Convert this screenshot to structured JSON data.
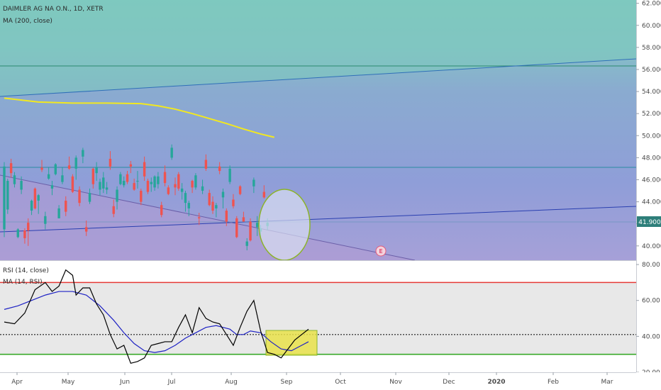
{
  "chart_data": [
    {
      "type": "candlestick",
      "title": "DAIMLER AG NA O.N., 1D, XETR",
      "indicator_label": "MA (200, close)",
      "y_ticks": [
        "62.000",
        "60.000",
        "58.000",
        "56.000",
        "54.000",
        "52.000",
        "50.000",
        "48.000",
        "46.000",
        "44.000",
        "42.000",
        "40.000"
      ],
      "ylim": [
        38.7,
        62.3
      ],
      "last_price": "41.900",
      "last_price_value": 41.9,
      "earnings_badge": "E",
      "colors": {
        "up": "#26a69a",
        "down": "#ef5350",
        "ma": "#f2e81f",
        "last_price_tag": "#2e7f7a"
      },
      "ma_200": [
        [
          0,
          53.4
        ],
        [
          10,
          53.05
        ],
        [
          20,
          52.95
        ],
        [
          30,
          52.95
        ],
        [
          40,
          52.9
        ],
        [
          45,
          52.7
        ],
        [
          50,
          52.4
        ],
        [
          55,
          52.0
        ],
        [
          60,
          51.55
        ],
        [
          65,
          51.1
        ],
        [
          70,
          50.6
        ],
        [
          75,
          50.15
        ],
        [
          79,
          49.85
        ]
      ],
      "candles": [
        [
          41.5,
          47.6,
          40.8,
          47.2
        ],
        [
          43.3,
          46.1,
          42.9,
          45.9
        ],
        [
          47.5,
          47.9,
          46.2,
          46.6
        ],
        [
          45.6,
          46.7,
          45.3,
          46.4
        ],
        [
          40.8,
          41.6,
          40.7,
          41.5
        ],
        [
          45.1,
          46.3,
          44.7,
          45.9
        ],
        [
          41.4,
          41.6,
          40.2,
          40.7
        ],
        [
          42.1,
          42.5,
          40.0,
          41.4
        ],
        [
          43.2,
          44.2,
          42.8,
          44.1
        ],
        [
          45.2,
          45.3,
          43.3,
          43.4
        ],
        [
          44.1,
          44.7,
          42.9,
          44.6
        ],
        [
          47.1,
          47.8,
          46.7,
          46.9
        ],
        [
          42.0,
          43.1,
          41.5,
          42.7
        ],
        [
          46.1,
          47.1,
          46.0,
          46.5
        ],
        [
          45.2,
          45.9,
          44.6,
          45.5
        ],
        [
          46.5,
          47.5,
          46.4,
          47.4
        ],
        [
          42.5,
          43.7,
          42.5,
          43.4
        ],
        [
          45.8,
          47.1,
          45.6,
          46.4
        ],
        [
          44.1,
          44.5,
          42.7,
          43.1
        ],
        [
          47.3,
          48.1,
          46.9,
          47.0
        ],
        [
          46.3,
          46.5,
          44.8,
          44.9
        ],
        [
          47.0,
          48.2,
          46.0,
          48.0
        ],
        [
          45.1,
          45.4,
          43.6,
          43.9
        ],
        [
          48.1,
          48.9,
          47.5,
          48.7
        ],
        [
          41.7,
          42.3,
          40.9,
          41.3
        ],
        [
          44.0,
          45.2,
          43.8,
          44.8
        ],
        [
          47.0,
          47.1,
          45.2,
          45.6
        ],
        [
          46.6,
          47.6,
          45.9,
          47.1
        ],
        [
          45.1,
          46.1,
          44.6,
          45.8
        ],
        [
          45.2,
          46.7,
          44.8,
          46.2
        ],
        [
          45.1,
          45.8,
          44.7,
          45.3
        ],
        [
          47.9,
          48.6,
          46.9,
          47.2
        ],
        [
          43.6,
          44.2,
          42.6,
          42.9
        ],
        [
          44.0,
          45.4,
          43.3,
          45.1
        ],
        [
          45.6,
          46.7,
          45.5,
          46.5
        ],
        [
          45.5,
          46.3,
          45.3,
          45.9
        ],
        [
          46.5,
          46.8,
          45.6,
          45.8
        ],
        [
          47.4,
          47.7,
          46.6,
          47.2
        ],
        [
          45.7,
          46.1,
          45.0,
          45.1
        ],
        [
          45.9,
          46.8,
          45.2,
          45.9
        ],
        [
          45.0,
          45.2,
          43.7,
          44.0
        ],
        [
          47.6,
          48.1,
          45.9,
          46.3
        ],
        [
          45.9,
          46.1,
          44.7,
          44.9
        ],
        [
          45.6,
          46.2,
          44.9,
          45.8
        ],
        [
          45.3,
          46.4,
          45.0,
          46.3
        ],
        [
          45.6,
          46.7,
          45.2,
          46.3
        ],
        [
          43.7,
          44.0,
          42.6,
          42.8
        ],
        [
          46.7,
          47.3,
          45.4,
          45.7
        ],
        [
          45.3,
          45.5,
          44.6,
          44.7
        ],
        [
          48.0,
          49.2,
          47.8,
          48.9
        ],
        [
          45.6,
          46.2,
          44.6,
          45.3
        ],
        [
          46.5,
          46.7,
          45.0,
          45.2
        ],
        [
          44.9,
          45.7,
          44.2,
          45.2
        ],
        [
          43.9,
          45.0,
          43.1,
          44.8
        ],
        [
          43.4,
          44.1,
          42.7,
          43.9
        ],
        [
          45.9,
          46.0,
          44.8,
          45.3
        ],
        [
          45.3,
          46.6,
          45.1,
          46.4
        ],
        [
          42.6,
          43.0,
          41.9,
          42.5
        ],
        [
          45.0,
          46.0,
          44.7,
          45.4
        ],
        [
          47.8,
          48.3,
          46.8,
          47.0
        ],
        [
          44.8,
          45.1,
          43.6,
          43.7
        ],
        [
          44.0,
          44.5,
          42.9,
          43.2
        ],
        [
          43.4,
          43.9,
          42.6,
          43.7
        ],
        [
          47.2,
          47.6,
          46.5,
          46.8
        ],
        [
          44.4,
          45.2,
          43.4,
          44.9
        ],
        [
          43.2,
          43.4,
          41.8,
          42.2
        ],
        [
          45.8,
          47.3,
          45.6,
          47.0
        ],
        [
          44.2,
          44.7,
          43.4,
          43.6
        ],
        [
          42.5,
          42.7,
          40.7,
          40.8
        ],
        [
          45.4,
          45.5,
          44.6,
          44.7
        ],
        [
          42.6,
          43.1,
          42.2,
          42.2
        ],
        [
          40.0,
          40.7,
          39.6,
          40.4
        ],
        [
          42.2,
          42.5,
          40.4,
          40.5
        ],
        [
          45.4,
          46.2,
          44.8,
          46.0
        ],
        [
          41.7,
          42.7,
          40.9,
          42.1
        ],
        [
          41.3,
          41.9,
          40.7,
          41.6
        ],
        [
          44.9,
          45.5,
          44.3,
          44.4
        ],
        [
          41.8,
          42.5,
          41.4,
          42.1
        ]
      ]
    },
    {
      "type": "line",
      "title": "RSI (14, close)",
      "indicator_label": "MA (14, RSI)",
      "y_ticks": [
        "80.00",
        "60.00",
        "40.00",
        "20.00"
      ],
      "ylim": [
        20,
        82
      ],
      "levels": {
        "upper": 70,
        "middle": 41,
        "lower": 30
      },
      "series": [
        {
          "name": "RSI (14, close)",
          "color": "#000000",
          "points": [
            [
              0,
              48
            ],
            [
              3,
              47
            ],
            [
              6,
              53
            ],
            [
              9,
              66
            ],
            [
              12,
              70
            ],
            [
              14,
              65
            ],
            [
              16,
              68
            ],
            [
              18,
              77
            ],
            [
              20,
              74
            ],
            [
              21,
              63
            ],
            [
              23,
              67
            ],
            [
              25,
              67
            ],
            [
              27,
              58
            ],
            [
              29,
              52
            ],
            [
              31,
              41
            ],
            [
              33,
              33
            ],
            [
              35,
              35
            ],
            [
              37,
              25
            ],
            [
              39,
              26
            ],
            [
              41,
              28
            ],
            [
              43,
              35
            ],
            [
              45,
              36
            ],
            [
              47,
              37
            ],
            [
              49,
              37
            ],
            [
              51,
              45
            ],
            [
              53,
              52
            ],
            [
              55,
              42
            ],
            [
              57,
              56
            ],
            [
              59,
              50
            ],
            [
              61,
              48
            ],
            [
              63,
              47
            ],
            [
              65,
              41
            ],
            [
              67,
              35
            ],
            [
              69,
              45
            ],
            [
              71,
              54
            ],
            [
              73,
              60
            ],
            [
              75,
              43
            ],
            [
              77,
              31
            ],
            [
              79,
              30
            ],
            [
              81,
              28
            ],
            [
              83,
              33
            ],
            [
              85,
              38
            ],
            [
              87,
              41
            ],
            [
              89,
              44
            ]
          ]
        },
        {
          "name": "MA (14, RSI)",
          "color": "#1e22c4",
          "points": [
            [
              0,
              55
            ],
            [
              4,
              57
            ],
            [
              8,
              60
            ],
            [
              12,
              63
            ],
            [
              16,
              65
            ],
            [
              20,
              65
            ],
            [
              24,
              63
            ],
            [
              28,
              57
            ],
            [
              32,
              49
            ],
            [
              35,
              42
            ],
            [
              38,
              36
            ],
            [
              41,
              32
            ],
            [
              44,
              31
            ],
            [
              47,
              32
            ],
            [
              50,
              35
            ],
            [
              53,
              39
            ],
            [
              56,
              42
            ],
            [
              59,
              45
            ],
            [
              62,
              46
            ],
            [
              64,
              45
            ],
            [
              66,
              44
            ],
            [
              68,
              41
            ],
            [
              70,
              41
            ],
            [
              72,
              43
            ],
            [
              75,
              42
            ],
            [
              78,
              37
            ],
            [
              81,
              33
            ],
            [
              84,
              32
            ],
            [
              87,
              35
            ],
            [
              89,
              37
            ]
          ]
        }
      ]
    }
  ],
  "x_axis": {
    "labels": [
      {
        "text": "Apr",
        "bold": false
      },
      {
        "text": "May",
        "bold": false
      },
      {
        "text": "Jun",
        "bold": false
      },
      {
        "text": "Jul",
        "bold": false
      },
      {
        "text": "Aug",
        "bold": false
      },
      {
        "text": "Sep",
        "bold": false
      },
      {
        "text": "Oct",
        "bold": false
      },
      {
        "text": "Nov",
        "bold": false
      },
      {
        "text": "Dec",
        "bold": false
      },
      {
        "text": "2020",
        "bold": true
      },
      {
        "text": "Feb",
        "bold": false
      },
      {
        "text": "Mar",
        "bold": false
      }
    ]
  }
}
